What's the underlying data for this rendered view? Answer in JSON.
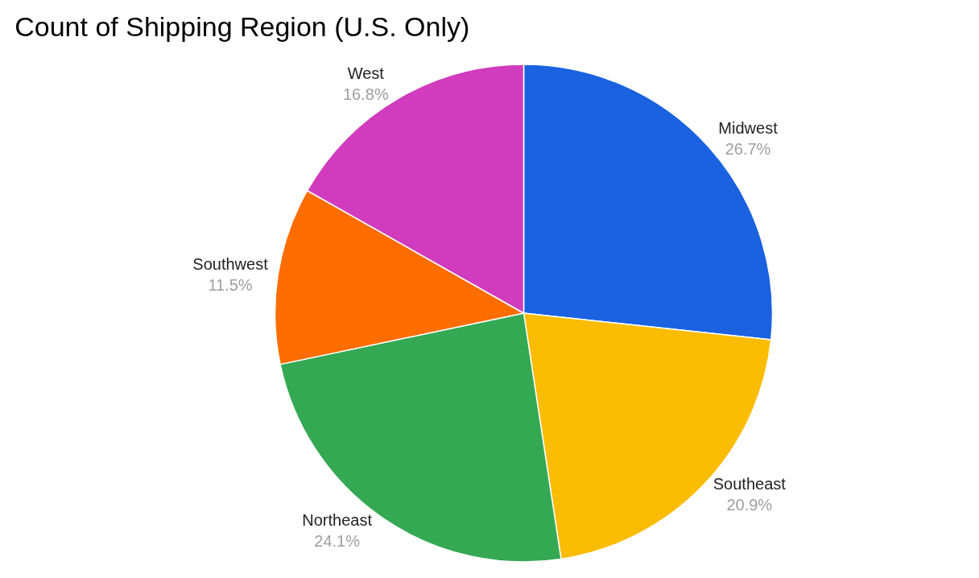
{
  "chart_data": {
    "type": "pie",
    "title": "Count of Shipping Region (U.S. Only)",
    "categories": [
      "Midwest",
      "Southeast",
      "Northeast",
      "Southwest",
      "West"
    ],
    "values": [
      26.7,
      20.9,
      24.1,
      11.5,
      16.8
    ],
    "value_labels": [
      "26.7%",
      "20.9%",
      "24.1%",
      "11.5%",
      "16.8%"
    ],
    "colors": [
      "#1a62e0",
      "#fbbc04",
      "#34a853",
      "#ff6d01",
      "#d03cbd"
    ],
    "legend": false
  }
}
